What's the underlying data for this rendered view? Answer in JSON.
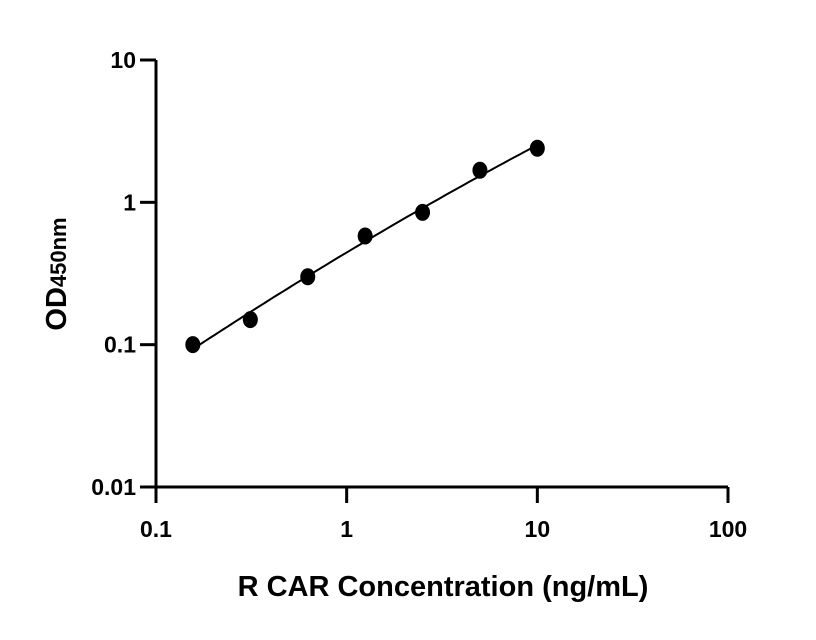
{
  "chart_data": {
    "type": "scatter",
    "title": "",
    "xlabel": "R CAR Concentration (ng/mL)",
    "ylabel": {
      "main": "OD",
      "sub": "450nm"
    },
    "x_scale": "log",
    "y_scale": "log",
    "xlim": [
      0.1,
      100
    ],
    "ylim": [
      0.01,
      10
    ],
    "x_ticks": [
      {
        "v": 0.1,
        "label": "0.1"
      },
      {
        "v": 1,
        "label": "1"
      },
      {
        "v": 10,
        "label": "10"
      },
      {
        "v": 100,
        "label": "100"
      }
    ],
    "y_ticks": [
      {
        "v": 0.01,
        "label": "0.01"
      },
      {
        "v": 0.1,
        "label": "0.1"
      },
      {
        "v": 1,
        "label": "1"
      },
      {
        "v": 10,
        "label": "10"
      }
    ],
    "grid": false,
    "fit_curve": true,
    "series": [
      {
        "x": [
          0.156,
          0.3125,
          0.625,
          1.25,
          2.5,
          5,
          10
        ],
        "y": [
          0.1,
          0.15,
          0.3,
          0.58,
          0.85,
          1.68,
          2.4
        ]
      }
    ],
    "colors": {
      "marker": "#000000",
      "line": "#000000"
    }
  }
}
